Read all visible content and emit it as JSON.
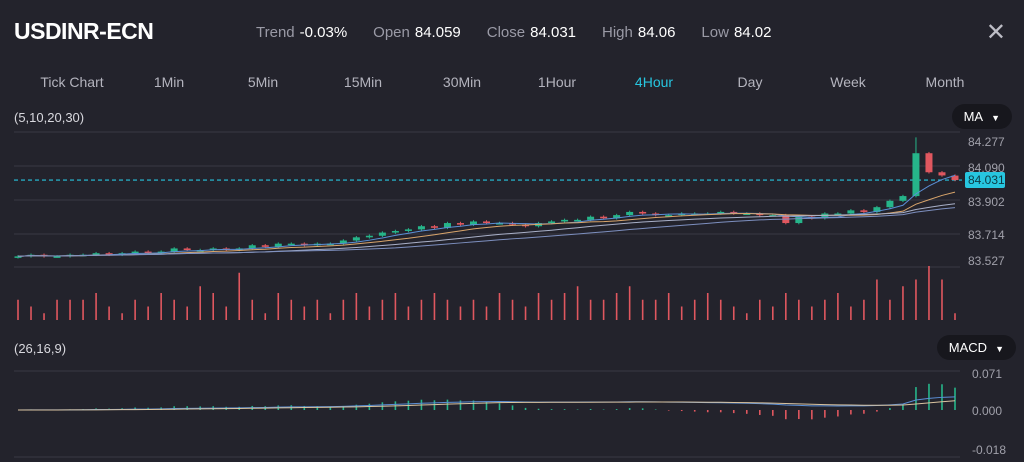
{
  "header": {
    "symbol": "USDINR-ECN",
    "stats": [
      {
        "label": "Trend",
        "value": "-0.03%"
      },
      {
        "label": "Open",
        "value": "84.059"
      },
      {
        "label": "Close",
        "value": "84.031"
      },
      {
        "label": "High",
        "value": "84.06"
      },
      {
        "label": "Low",
        "value": "84.02"
      }
    ],
    "close_icon": "close-icon"
  },
  "tabs": [
    {
      "label": "Tick Chart"
    },
    {
      "label": "1Min"
    },
    {
      "label": "5Min"
    },
    {
      "label": "15Min"
    },
    {
      "label": "30Min"
    },
    {
      "label": "1Hour"
    },
    {
      "label": "4Hour",
      "active": true
    },
    {
      "label": "Day"
    },
    {
      "label": "Week"
    },
    {
      "label": "Month"
    }
  ],
  "main_indicator": {
    "params": "(5,10,20,30)",
    "selector": "MA"
  },
  "sub_indicator": {
    "params": "(26,16,9)",
    "selector": "MACD"
  },
  "colors": {
    "up": "#26b58a",
    "down": "#e0575f",
    "accent": "#27c6e0",
    "ma": [
      "#5b8fd6",
      "#d9a56b",
      "#a9b0c8",
      "#7d8fbf"
    ]
  },
  "chart_data": {
    "type": "candlestick",
    "price_ticks": [
      "84.277",
      "84.090",
      "83.902",
      "83.714",
      "83.527"
    ],
    "current_price": "84.031",
    "macd_ticks": [
      "0.071",
      "0.000",
      "-0.018"
    ],
    "closes": [
      83.55,
      83.56,
      83.55,
      83.55,
      83.56,
      83.56,
      83.57,
      83.56,
      83.57,
      83.58,
      83.57,
      83.58,
      83.6,
      83.59,
      83.59,
      83.6,
      83.59,
      83.6,
      83.62,
      83.61,
      83.63,
      83.63,
      83.62,
      83.63,
      83.63,
      83.65,
      83.67,
      83.68,
      83.7,
      83.71,
      83.72,
      83.74,
      83.73,
      83.76,
      83.75,
      83.77,
      83.76,
      83.76,
      83.75,
      83.74,
      83.76,
      83.77,
      83.78,
      83.78,
      83.8,
      83.79,
      83.81,
      83.83,
      83.82,
      83.81,
      83.81,
      83.82,
      83.82,
      83.82,
      83.83,
      83.82,
      83.82,
      83.81,
      83.81,
      83.76,
      83.8,
      83.79,
      83.82,
      83.82,
      83.84,
      83.83,
      83.86,
      83.9,
      83.93,
      84.2,
      84.08,
      84.06,
      84.031
    ],
    "volumes": [
      3,
      2,
      1,
      3,
      3,
      3,
      4,
      2,
      1,
      3,
      2,
      4,
      3,
      2,
      5,
      4,
      2,
      7,
      3,
      1,
      4,
      3,
      2,
      3,
      1,
      3,
      4,
      2,
      3,
      4,
      2,
      3,
      4,
      3,
      2,
      3,
      2,
      4,
      3,
      2,
      4,
      3,
      4,
      5,
      3,
      3,
      4,
      5,
      3,
      3,
      4,
      2,
      3,
      4,
      3,
      2,
      1,
      3,
      2,
      4,
      3,
      2,
      3,
      4,
      2,
      3,
      6,
      3,
      5,
      6,
      8,
      6,
      1
    ]
  }
}
